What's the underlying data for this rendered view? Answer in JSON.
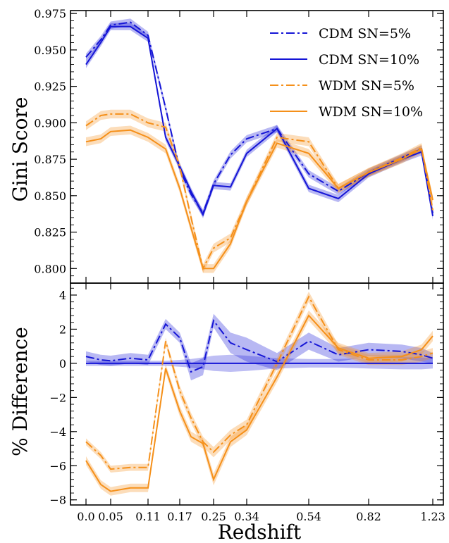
{
  "chart_data": [
    {
      "type": "line",
      "panel": "top",
      "ylabel": "Gini Score",
      "xlabel": "",
      "ylim": [
        0.79,
        0.977
      ],
      "yticks": [
        0.8,
        0.825,
        0.85,
        0.875,
        0.9,
        0.925,
        0.95,
        0.975
      ],
      "ytick_labels": [
        "0.800",
        "0.825",
        "0.850",
        "0.875",
        "0.900",
        "0.925",
        "0.950",
        "0.975"
      ],
      "x": [
        0.0,
        0.02,
        0.05,
        0.08,
        0.11,
        0.14,
        0.17,
        0.2,
        0.23,
        0.26,
        0.3,
        0.34,
        0.42,
        0.54,
        0.68,
        0.82,
        0.94,
        1.06,
        1.23
      ],
      "legend": {
        "placement": "top-right"
      },
      "series": [
        {
          "name": "CDM SN=5%",
          "color": "#1515d6",
          "style": "dashdot",
          "values": [
            0.945,
            0.957,
            0.967,
            0.969,
            0.96,
            0.91,
            0.868,
            0.851,
            0.838,
            0.858,
            0.878,
            0.889,
            0.896,
            0.865,
            0.853,
            0.866,
            0.876,
            0.882,
            0.838
          ],
          "band": 0.0025
        },
        {
          "name": "CDM SN=10%",
          "color": "#1515d6",
          "style": "solid",
          "values": [
            0.94,
            0.955,
            0.966,
            0.966,
            0.958,
            0.89,
            0.87,
            0.853,
            0.837,
            0.857,
            0.856,
            0.879,
            0.896,
            0.855,
            0.848,
            0.865,
            0.875,
            0.88,
            0.836
          ],
          "band": 0.0025
        },
        {
          "name": "WDM SN=5%",
          "color": "#f5901a",
          "style": "dashdot",
          "values": [
            0.898,
            0.905,
            0.906,
            0.906,
            0.9,
            0.897,
            0.87,
            0.835,
            0.8,
            0.814,
            0.821,
            0.846,
            0.89,
            0.887,
            0.855,
            0.866,
            0.876,
            0.883,
            0.84
          ],
          "band": 0.003
        },
        {
          "name": "WDM SN=10%",
          "color": "#f5901a",
          "style": "solid",
          "values": [
            0.887,
            0.889,
            0.894,
            0.895,
            0.89,
            0.882,
            0.855,
            0.828,
            0.8,
            0.8,
            0.817,
            0.846,
            0.886,
            0.879,
            0.855,
            0.866,
            0.875,
            0.882,
            0.847
          ],
          "band": 0.003
        }
      ]
    },
    {
      "type": "line",
      "panel": "bottom",
      "ylabel": "% Difference",
      "xlabel": "Redshift",
      "ylim": [
        -8.3,
        4.7
      ],
      "yticks": [
        -8,
        -6,
        -4,
        -2,
        0,
        2,
        4
      ],
      "ytick_labels": [
        "−8",
        "−6",
        "−4",
        "−2",
        "0",
        "2",
        "4"
      ],
      "xticks": [
        0.0,
        0.05,
        0.11,
        0.17,
        0.25,
        0.34,
        0.54,
        0.82,
        1.23
      ],
      "xtick_labels": [
        "0.0",
        "0.05",
        "0.11",
        "0.17",
        "0.25",
        "0.34",
        "0.54",
        "0.82",
        "1.23"
      ],
      "xlim": [
        -0.03,
        1.26
      ],
      "x": [
        0.0,
        0.02,
        0.05,
        0.08,
        0.11,
        0.14,
        0.17,
        0.2,
        0.23,
        0.26,
        0.3,
        0.34,
        0.42,
        0.54,
        0.68,
        0.82,
        0.94,
        1.06,
        1.23
      ],
      "series": [
        {
          "name": "CDM SN=5%",
          "color": "#1515d6",
          "style": "dashdot",
          "values": [
            0.4,
            0.2,
            0.15,
            0.3,
            0.2,
            2.3,
            1.5,
            -0.5,
            -0.2,
            2.5,
            1.2,
            0.8,
            0.1,
            1.3,
            0.5,
            0.8,
            0.7,
            0.5,
            0.3
          ],
          "band": [
            0.3,
            0.3,
            0.3,
            0.3,
            0.3,
            0.3,
            0.3,
            0.5,
            0.5,
            0.4,
            0.6,
            0.7,
            0.5,
            0.5,
            0.4,
            0.4,
            0.4,
            0.4,
            0.3
          ]
        },
        {
          "name": "CDM SN=10%",
          "color": "#1515d6",
          "style": "solid",
          "values": [
            0.0,
            0.0,
            0.0,
            0.0,
            0.0,
            0.0,
            0.0,
            0.0,
            0.0,
            0.0,
            0.0,
            0.0,
            0.0,
            0.0,
            0.0,
            0.0,
            0.0,
            0.0,
            0.0
          ],
          "band": [
            0.15,
            0.15,
            0.15,
            0.15,
            0.15,
            0.15,
            0.2,
            0.25,
            0.35,
            0.45,
            0.5,
            0.45,
            0.3,
            0.25,
            0.25,
            0.3,
            0.35,
            0.35,
            0.3
          ]
        },
        {
          "name": "WDM SN=5%",
          "color": "#f5901a",
          "style": "dashdot",
          "values": [
            -4.6,
            -5.4,
            -6.2,
            -6.1,
            -6.1,
            1.3,
            -1.6,
            -3.2,
            -4.6,
            -5.2,
            -4.2,
            -3.6,
            0.0,
            3.9,
            0.8,
            0.2,
            0.2,
            0.4,
            0.6
          ],
          "band": [
            0.2,
            0.2,
            0.2,
            0.2,
            0.2,
            0.2,
            0.3,
            0.3,
            0.3,
            0.3,
            0.3,
            0.3,
            0.3,
            0.3,
            0.3,
            0.3,
            0.3,
            0.3,
            0.3
          ]
        },
        {
          "name": "WDM SN=10%",
          "color": "#f5901a",
          "style": "solid",
          "values": [
            -5.7,
            -7.1,
            -7.5,
            -7.3,
            -7.3,
            -0.3,
            -2.8,
            -4.3,
            -4.7,
            -6.8,
            -4.6,
            -3.9,
            -0.8,
            2.8,
            0.9,
            0.3,
            0.4,
            0.8,
            1.6
          ],
          "band": [
            0.25,
            0.25,
            0.25,
            0.25,
            0.25,
            0.25,
            0.3,
            0.3,
            0.3,
            0.35,
            0.3,
            0.3,
            0.3,
            0.3,
            0.3,
            0.3,
            0.3,
            0.3,
            0.3
          ]
        }
      ]
    }
  ]
}
